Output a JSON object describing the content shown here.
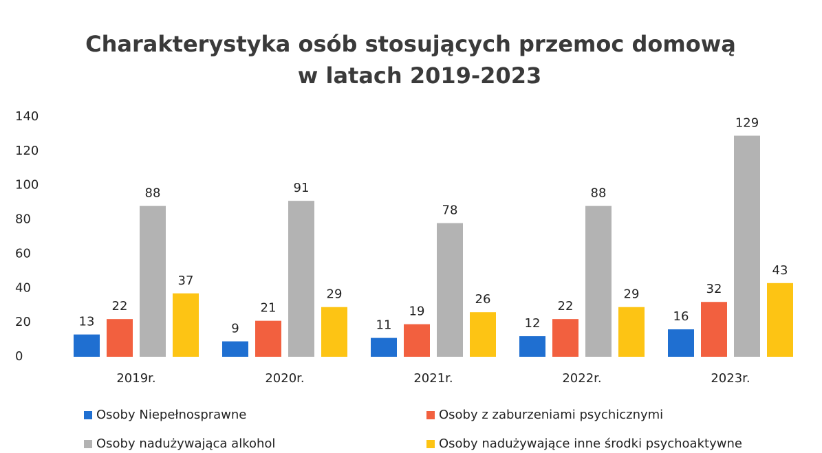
{
  "chart_data": {
    "type": "bar",
    "title": "Charakterystyka osób stosujących przemoc domową",
    "subtitle": "w latach 2019-2023",
    "categories": [
      "2019r.",
      "2020r.",
      "2021r.",
      "2022r.",
      "2023r."
    ],
    "series": [
      {
        "name": "Osoby Niepełnosprawne",
        "color": "#1f6fd1",
        "values": [
          13,
          9,
          11,
          12,
          16
        ]
      },
      {
        "name": "Osoby z zaburzeniami psychicznymi",
        "color": "#f2603f",
        "values": [
          22,
          21,
          19,
          22,
          32
        ]
      },
      {
        "name": "Osoby nadużywająca alkohol",
        "color": "#b3b3b3",
        "values": [
          88,
          91,
          78,
          88,
          129
        ]
      },
      {
        "name": "Osoby nadużywające inne środki psychoaktywne",
        "color": "#fdc414",
        "values": [
          37,
          29,
          26,
          29,
          43
        ]
      }
    ],
    "ylim": [
      0,
      140
    ],
    "yticks": [
      0,
      20,
      40,
      60,
      80,
      100,
      120,
      140
    ],
    "grid": false
  }
}
